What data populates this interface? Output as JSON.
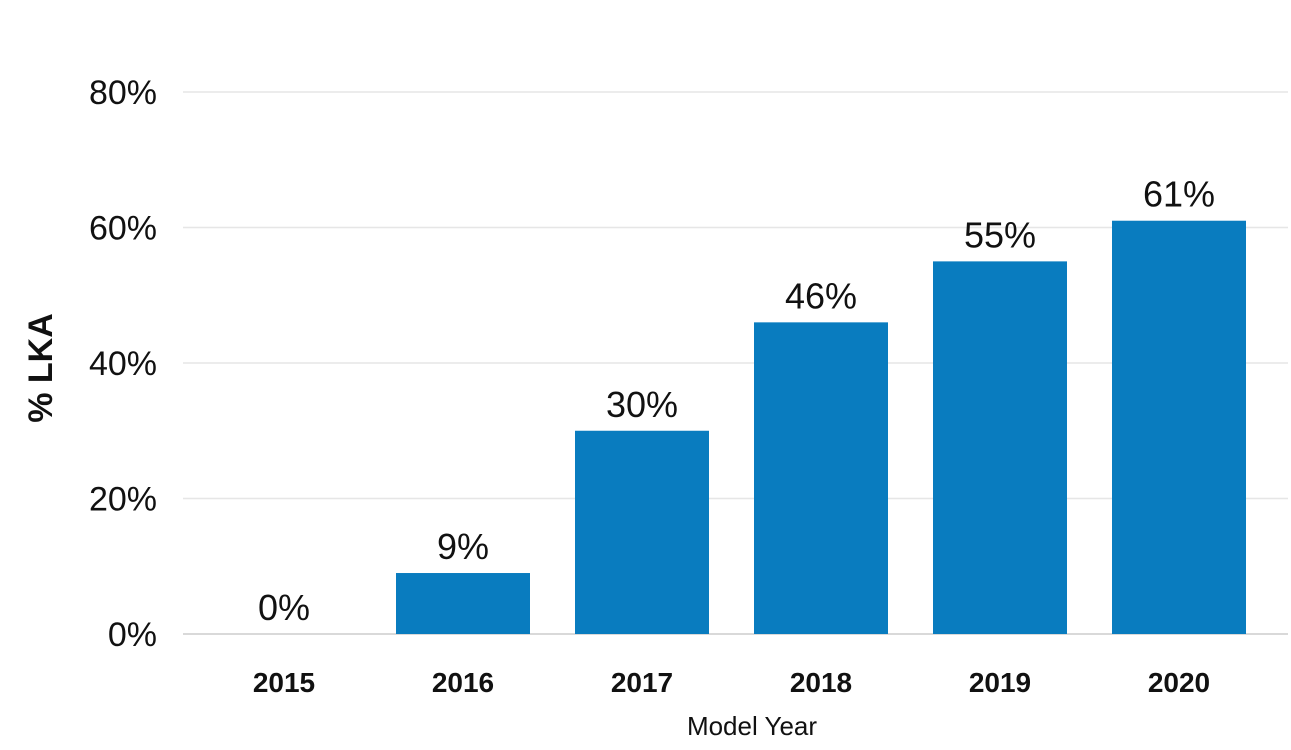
{
  "chart_data": {
    "type": "bar",
    "title": "",
    "xlabel": "Model Year",
    "ylabel": "% LKA",
    "categories": [
      "2015",
      "2016",
      "2017",
      "2018",
      "2019",
      "2020"
    ],
    "values": [
      0,
      9,
      30,
      46,
      55,
      61
    ],
    "data_labels": [
      "0%",
      "9%",
      "30%",
      "46%",
      "55%",
      "61%"
    ],
    "yticks": [
      0,
      20,
      40,
      60,
      80
    ],
    "ytick_labels": [
      "0%",
      "20%",
      "40%",
      "60%",
      "80%"
    ],
    "ylim": [
      0,
      90
    ],
    "grid": true,
    "legend": "none",
    "colors": {
      "bar": "#097CBF",
      "grid": "#E6E6E6",
      "axis": "#D9D9D9",
      "text": "#111111",
      "title": "#2E4A9E"
    }
  }
}
